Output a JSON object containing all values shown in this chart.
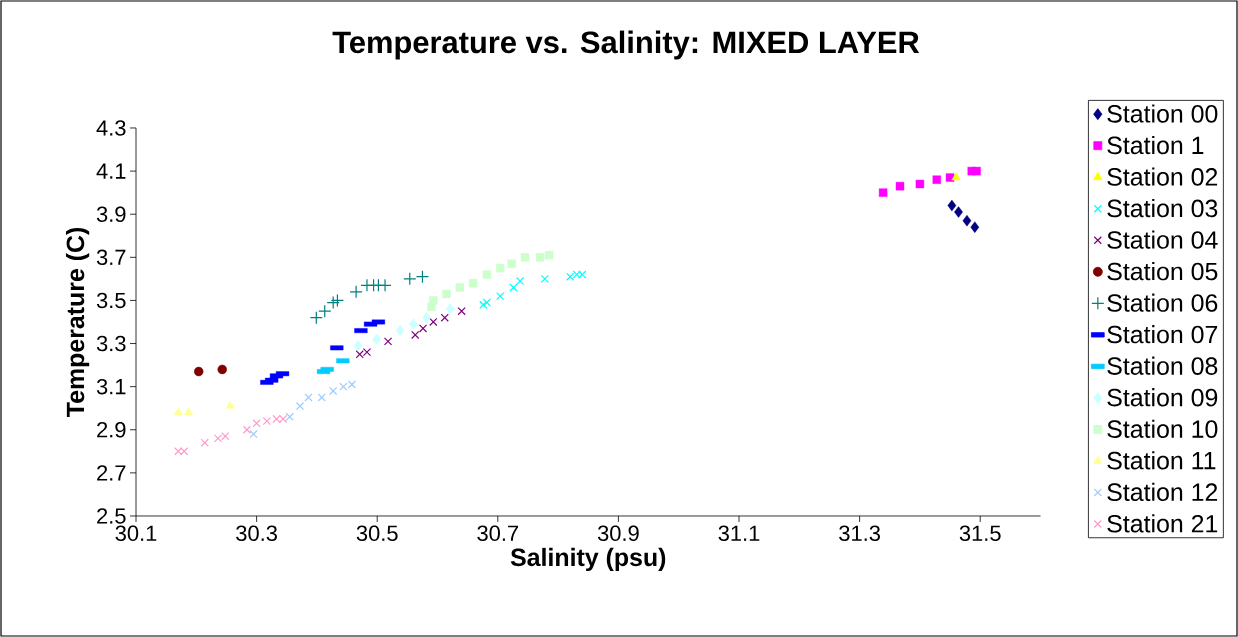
{
  "chart_data": {
    "type": "scatter",
    "title": "Temperature vs. Salinity: MIXED LAYER",
    "xlabel": "Salinity (psu)",
    "ylabel": "Temperature (C)",
    "xlim": [
      30.1,
      31.6
    ],
    "xticks": [
      30.1,
      30.3,
      30.5,
      30.7,
      30.9,
      31.1,
      31.3,
      31.5
    ],
    "ylim": [
      2.5,
      4.3
    ],
    "yticks": [
      2.5,
      2.7,
      2.9,
      3.1,
      3.3,
      3.5,
      3.7,
      3.9,
      4.1,
      4.3
    ],
    "legend": "right",
    "series": [
      {
        "name": "Station 00",
        "color": "#000080",
        "marker": "diamond",
        "x": [
          31.453,
          31.464,
          31.478,
          31.491
        ],
        "values": [
          3.94,
          3.91,
          3.87,
          3.84
        ]
      },
      {
        "name": "Station 1",
        "color": "#ff00ff",
        "marker": "square",
        "x": [
          31.339,
          31.367,
          31.4,
          31.428,
          31.45,
          31.486,
          31.494
        ],
        "values": [
          4.0,
          4.03,
          4.04,
          4.06,
          4.07,
          4.1,
          4.1
        ]
      },
      {
        "name": "Station 02",
        "color": "#ffff00",
        "marker": "triangle",
        "x": [
          31.46
        ],
        "values": [
          4.07
        ]
      },
      {
        "name": "Station 03",
        "color": "#00ffff",
        "marker": "cross",
        "x": [
          30.676,
          30.682,
          30.704,
          30.726,
          30.737,
          30.778,
          30.82,
          30.831,
          30.84
        ],
        "values": [
          3.48,
          3.49,
          3.52,
          3.56,
          3.59,
          3.6,
          3.61,
          3.62,
          3.62
        ]
      },
      {
        "name": "Station 04",
        "color": "#800080",
        "marker": "cross",
        "x": [
          30.471,
          30.483,
          30.518,
          30.563,
          30.576,
          30.593,
          30.612,
          30.64
        ],
        "values": [
          3.25,
          3.26,
          3.31,
          3.34,
          3.37,
          3.4,
          3.42,
          3.45
        ]
      },
      {
        "name": "Station 05",
        "color": "#800000",
        "marker": "circle",
        "x": [
          30.204,
          30.243
        ],
        "values": [
          3.17,
          3.18
        ]
      },
      {
        "name": "Station 06",
        "color": "#008080",
        "marker": "plus",
        "x": [
          30.399,
          30.413,
          30.427,
          30.434,
          30.465,
          30.483,
          30.494,
          30.502,
          30.513,
          30.554,
          30.575
        ],
        "values": [
          3.42,
          3.45,
          3.49,
          3.5,
          3.54,
          3.57,
          3.57,
          3.57,
          3.57,
          3.6,
          3.61
        ]
      },
      {
        "name": "Station 07",
        "color": "#0000ff",
        "marker": "square",
        "x": [
          30.317,
          30.325,
          30.333,
          30.343,
          30.433,
          30.473,
          30.489,
          30.502
        ],
        "values": [
          3.12,
          3.13,
          3.15,
          3.16,
          3.28,
          3.36,
          3.39,
          3.4
        ]
      },
      {
        "name": "Station 08",
        "color": "#00ccff",
        "marker": "square",
        "x": [
          30.411,
          30.417,
          30.443
        ],
        "values": [
          3.17,
          3.18,
          3.22
        ]
      },
      {
        "name": "Station 09",
        "color": "#ccffff",
        "marker": "diamond",
        "x": [
          30.468,
          30.499,
          30.538,
          30.56,
          30.582,
          30.621
        ],
        "values": [
          3.29,
          3.32,
          3.36,
          3.39,
          3.42,
          3.46
        ]
      },
      {
        "name": "Station 10",
        "color": "#ccffcc",
        "marker": "square",
        "x": [
          30.59,
          30.593,
          30.615,
          30.637,
          30.659,
          30.682,
          30.704,
          30.723,
          30.745,
          30.77,
          30.785
        ],
        "values": [
          3.47,
          3.5,
          3.53,
          3.56,
          3.58,
          3.62,
          3.65,
          3.67,
          3.7,
          3.7,
          3.71
        ]
      },
      {
        "name": "Station 11",
        "color": "#ffff99",
        "marker": "triangle",
        "x": [
          30.17,
          30.187,
          30.256
        ],
        "values": [
          2.98,
          2.98,
          3.01
        ]
      },
      {
        "name": "Station 12",
        "color": "#99ccff",
        "marker": "cross",
        "x": [
          30.295,
          30.355,
          30.372,
          30.386,
          30.408,
          30.427,
          30.444,
          30.458
        ],
        "values": [
          2.88,
          2.96,
          3.01,
          3.05,
          3.05,
          3.08,
          3.1,
          3.11
        ]
      },
      {
        "name": "Station 21",
        "color": "#ff99cc",
        "marker": "cross",
        "x": [
          30.17,
          30.18,
          30.214,
          30.236,
          30.248,
          30.284,
          30.3,
          30.317,
          30.333,
          30.344
        ],
        "values": [
          2.8,
          2.8,
          2.84,
          2.86,
          2.87,
          2.9,
          2.93,
          2.94,
          2.95,
          2.95
        ]
      }
    ]
  }
}
